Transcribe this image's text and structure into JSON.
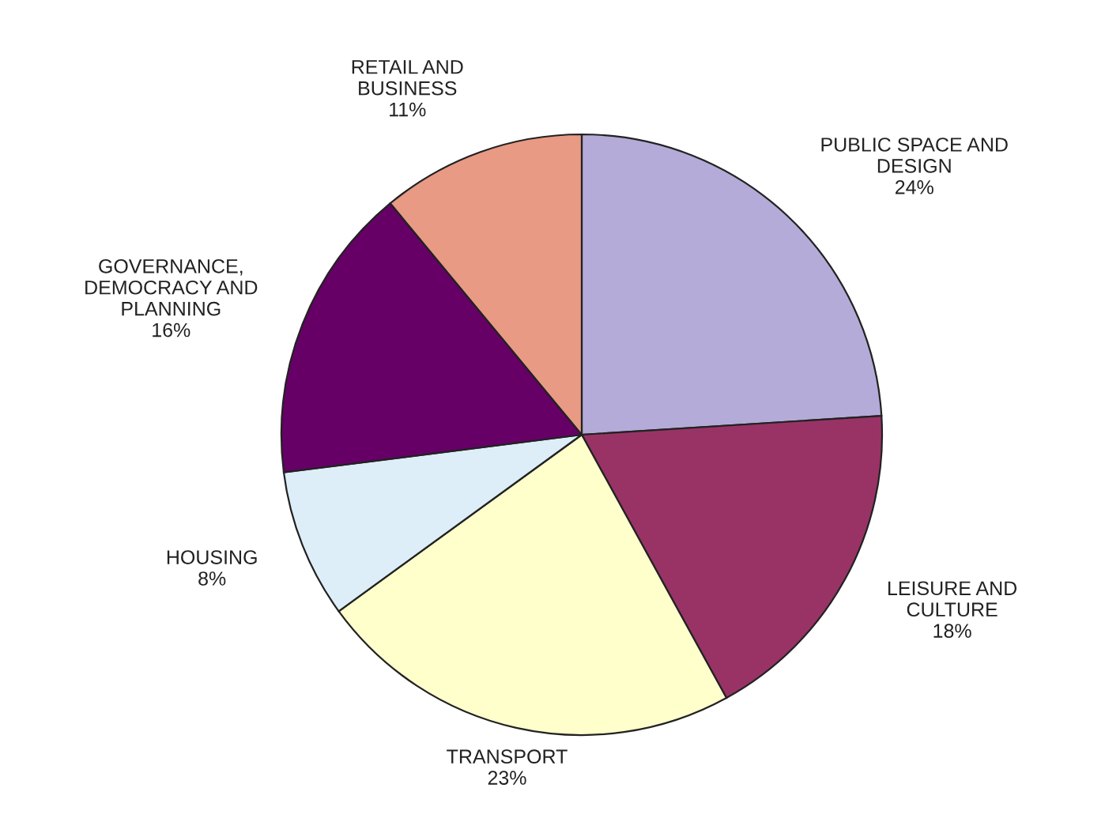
{
  "chart_data": {
    "type": "pie",
    "categories": [
      "PUBLIC SPACE AND\nDESIGN",
      "LEISURE AND\nCULTURE",
      "TRANSPORT",
      "HOUSING",
      "GOVERNANCE,\nDEMOCRACY AND\nPLANNING",
      "RETAIL AND\nBUSINESS"
    ],
    "values": [
      24,
      18,
      23,
      8,
      16,
      11
    ],
    "value_labels": [
      "24%",
      "18%",
      "23%",
      "8%",
      "16%",
      "11%"
    ],
    "colors": [
      "#b4abd8",
      "#993366",
      "#ffffcc",
      "#ddeef8",
      "#660066",
      "#e89a84"
    ],
    "legend": false
  }
}
